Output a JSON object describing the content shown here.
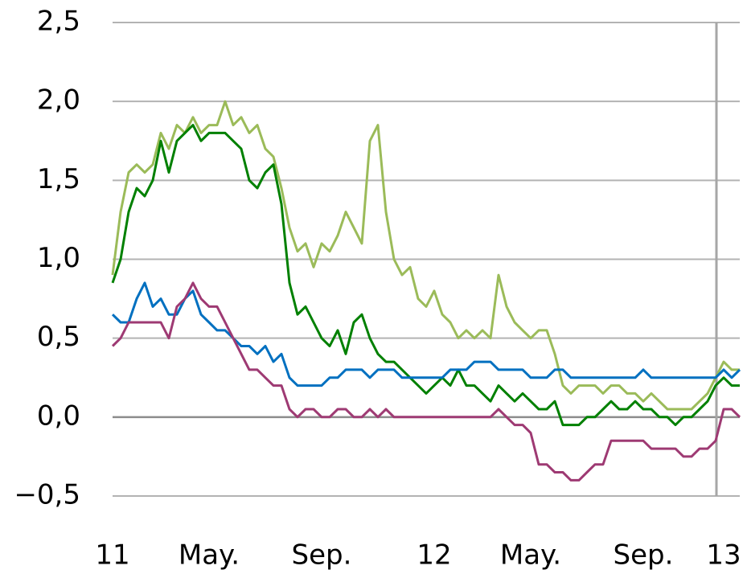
{
  "chart_data": {
    "type": "line",
    "categories": [
      "11",
      null,
      null,
      null,
      null,
      null,
      null,
      null,
      null,
      null,
      null,
      null,
      "May.",
      null,
      null,
      null,
      null,
      null,
      null,
      null,
      null,
      null,
      null,
      null,
      null,
      null,
      "Sep.",
      null,
      null,
      null,
      null,
      null,
      null,
      null,
      null,
      null,
      null,
      null,
      null,
      null,
      "12",
      null,
      null,
      null,
      null,
      null,
      null,
      null,
      null,
      null,
      null,
      null,
      "May.",
      null,
      null,
      null,
      null,
      null,
      null,
      null,
      null,
      null,
      null,
      null,
      null,
      null,
      "Sep.",
      null,
      null,
      null,
      null,
      null,
      null,
      null,
      null,
      null,
      "13",
      null,
      null
    ],
    "series": [
      {
        "color": "#9bbb59",
        "values": [
          0.9,
          1.3,
          1.55,
          1.6,
          1.55,
          1.6,
          1.8,
          1.7,
          1.85,
          1.8,
          1.9,
          1.8,
          1.85,
          1.85,
          2.0,
          1.85,
          1.9,
          1.8,
          1.85,
          1.7,
          1.65,
          1.45,
          1.2,
          1.05,
          1.1,
          0.95,
          1.1,
          1.05,
          1.15,
          1.3,
          1.2,
          1.1,
          1.75,
          1.85,
          1.3,
          1.0,
          0.9,
          0.95,
          0.75,
          0.7,
          0.8,
          0.65,
          0.6,
          0.5,
          0.55,
          0.5,
          0.55,
          0.5,
          0.9,
          0.7,
          0.6,
          0.55,
          0.5,
          0.55,
          0.55,
          0.4,
          0.2,
          0.15,
          0.2,
          0.2,
          0.2,
          0.15,
          0.2,
          0.2,
          0.15,
          0.15,
          0.1,
          0.15,
          0.1,
          0.05,
          0.05,
          0.05,
          0.05,
          0.1,
          0.15,
          0.25,
          0.35,
          0.3,
          0.3
        ]
      },
      {
        "color": "#008000",
        "values": [
          0.85,
          1.0,
          1.3,
          1.45,
          1.4,
          1.5,
          1.75,
          1.55,
          1.75,
          1.8,
          1.85,
          1.75,
          1.8,
          1.8,
          1.8,
          1.75,
          1.7,
          1.5,
          1.45,
          1.55,
          1.6,
          1.35,
          0.85,
          0.65,
          0.7,
          0.6,
          0.5,
          0.45,
          0.55,
          0.4,
          0.6,
          0.65,
          0.5,
          0.4,
          0.35,
          0.35,
          0.3,
          0.25,
          0.2,
          0.15,
          0.2,
          0.25,
          0.2,
          0.3,
          0.2,
          0.2,
          0.15,
          0.1,
          0.2,
          0.15,
          0.1,
          0.15,
          0.1,
          0.05,
          0.05,
          0.1,
          -0.05,
          -0.05,
          -0.05,
          0.0,
          0.0,
          0.05,
          0.1,
          0.05,
          0.05,
          0.1,
          0.05,
          0.05,
          0.0,
          0.0,
          -0.05,
          0.0,
          0.0,
          0.05,
          0.1,
          0.2,
          0.25,
          0.2,
          0.2
        ]
      },
      {
        "color": "#0070c0",
        "values": [
          0.65,
          0.6,
          0.6,
          0.75,
          0.85,
          0.7,
          0.75,
          0.65,
          0.65,
          0.75,
          0.8,
          0.65,
          0.6,
          0.55,
          0.55,
          0.5,
          0.45,
          0.45,
          0.4,
          0.45,
          0.35,
          0.4,
          0.25,
          0.2,
          0.2,
          0.2,
          0.2,
          0.25,
          0.25,
          0.3,
          0.3,
          0.3,
          0.25,
          0.3,
          0.3,
          0.3,
          0.25,
          0.25,
          0.25,
          0.25,
          0.25,
          0.25,
          0.3,
          0.3,
          0.3,
          0.35,
          0.35,
          0.35,
          0.3,
          0.3,
          0.3,
          0.3,
          0.25,
          0.25,
          0.25,
          0.3,
          0.3,
          0.25,
          0.25,
          0.25,
          0.25,
          0.25,
          0.25,
          0.25,
          0.25,
          0.25,
          0.3,
          0.25,
          0.25,
          0.25,
          0.25,
          0.25,
          0.25,
          0.25,
          0.25,
          0.25,
          0.3,
          0.25,
          0.3
        ]
      },
      {
        "color": "#9e3a73",
        "values": [
          0.45,
          0.5,
          0.6,
          0.6,
          0.6,
          0.6,
          0.6,
          0.5,
          0.7,
          0.75,
          0.85,
          0.75,
          0.7,
          0.7,
          0.6,
          0.5,
          0.4,
          0.3,
          0.3,
          0.25,
          0.2,
          0.2,
          0.05,
          0.0,
          0.05,
          0.05,
          0.0,
          0.0,
          0.05,
          0.05,
          0.0,
          0.0,
          0.05,
          0.0,
          0.05,
          0.0,
          0.0,
          0.0,
          0.0,
          0.0,
          0.0,
          0.0,
          0.0,
          0.0,
          0.0,
          0.0,
          0.0,
          0.0,
          0.05,
          0.0,
          -0.05,
          -0.05,
          -0.1,
          -0.3,
          -0.3,
          -0.35,
          -0.35,
          -0.4,
          -0.4,
          -0.35,
          -0.3,
          -0.3,
          -0.15,
          -0.15,
          -0.15,
          -0.15,
          -0.15,
          -0.2,
          -0.2,
          -0.2,
          -0.2,
          -0.25,
          -0.25,
          -0.2,
          -0.2,
          -0.15,
          0.05,
          0.05,
          0.0
        ]
      }
    ],
    "ylim": [
      -0.5,
      2.5
    ],
    "yticks": [
      {
        "value": -0.5,
        "label": "−0,5"
      },
      {
        "value": 0,
        "label": "0,0"
      },
      {
        "value": 0.5,
        "label": "0,5"
      },
      {
        "value": 1,
        "label": "1,0"
      },
      {
        "value": 1.5,
        "label": "1,5"
      },
      {
        "value": 2,
        "label": "2,0"
      },
      {
        "value": 2.5,
        "label": "2,5"
      }
    ],
    "grid": true
  }
}
